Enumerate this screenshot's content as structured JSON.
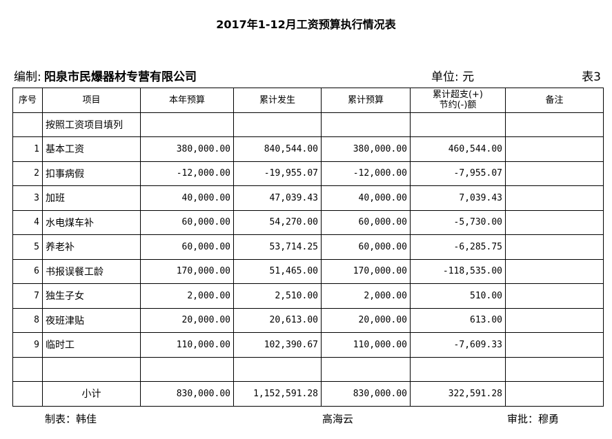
{
  "title": "2017年1-12月工资预算执行情况表",
  "header": {
    "prepared_label": "编制:",
    "company": "阳泉市民爆器材专营有限公司",
    "unit": "单位: 元",
    "sheet": "表3"
  },
  "table": {
    "columns": [
      "序号",
      "项目",
      "本年预算",
      "累计发生",
      "累计预算",
      "累计超支(+)\n节约(-)额",
      "备注"
    ],
    "rows": [
      [
        null,
        "按照工资项目填列",
        null,
        null,
        null,
        null,
        null
      ],
      [
        "1",
        "基本工资",
        "380,000.00",
        "840,544.00",
        "380,000.00",
        "460,544.00",
        null
      ],
      [
        "2",
        "扣事病假",
        "-12,000.00",
        "-19,955.07",
        "-12,000.00",
        "-7,955.07",
        null
      ],
      [
        "3",
        "加班",
        "40,000.00",
        "47,039.43",
        "40,000.00",
        "7,039.43",
        null
      ],
      [
        "4",
        "水电煤车补",
        "60,000.00",
        "54,270.00",
        "60,000.00",
        "-5,730.00",
        null
      ],
      [
        "5",
        "养老补",
        "60,000.00",
        "53,714.25",
        "60,000.00",
        "-6,285.75",
        null
      ],
      [
        "6",
        "书报误餐工龄",
        "170,000.00",
        "51,465.00",
        "170,000.00",
        "-118,535.00",
        null
      ],
      [
        "7",
        "独生子女",
        "2,000.00",
        "2,510.00",
        "2,000.00",
        "510.00",
        null
      ],
      [
        "8",
        "夜班津贴",
        "20,000.00",
        "20,613.00",
        "20,000.00",
        "613.00",
        null
      ],
      [
        "9",
        "临时工",
        "110,000.00",
        "102,390.67",
        "110,000.00",
        "-7,609.33",
        null
      ],
      [
        null,
        null,
        null,
        null,
        null,
        null,
        null
      ],
      [
        null,
        "小计",
        "830,000.00",
        "1,152,591.28",
        "830,000.00",
        "322,591.28",
        null
      ]
    ]
  },
  "footer": {
    "prepared_by": "制表：韩佳",
    "middle": "高海云",
    "approved_by": "审批：穆勇"
  }
}
